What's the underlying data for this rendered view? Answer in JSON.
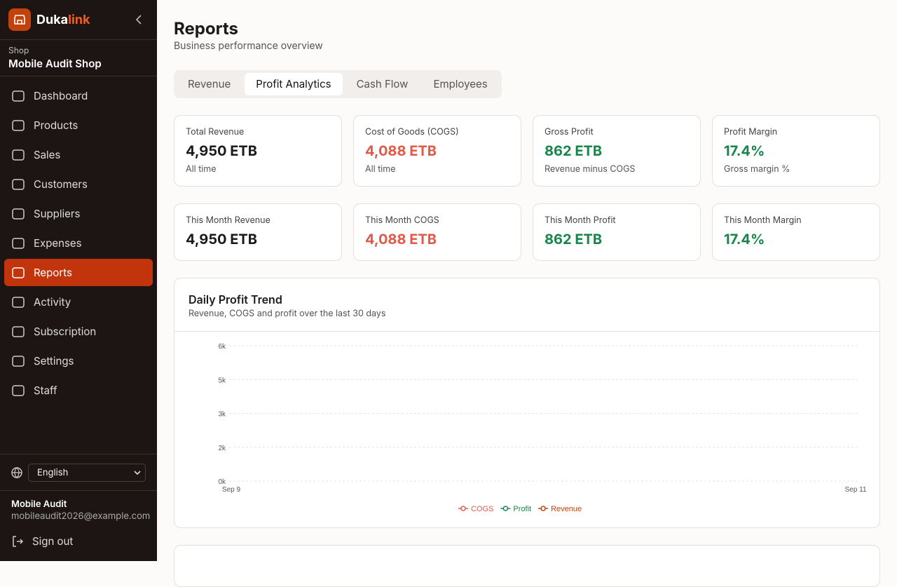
{
  "sidebar": {
    "brand": {
      "first": "Duka",
      "second": "link"
    },
    "shop_label": "Shop",
    "shop_name": "Mobile Audit Shop",
    "nav": [
      "Dashboard",
      "Products",
      "Sales",
      "Customers",
      "Suppliers",
      "Expenses",
      "Reports",
      "Activity",
      "Subscription",
      "Settings",
      "Staff"
    ],
    "active_nav": 6,
    "language": "English",
    "user": {
      "name": "Mobile Audit",
      "email": "mobileaudit2026@example.com"
    },
    "sign_out": "Sign out"
  },
  "header": {
    "title": "Reports",
    "subtitle": "Business performance overview"
  },
  "tabs": [
    "Revenue",
    "Profit Analytics",
    "Cash Flow",
    "Employees"
  ],
  "active_tab": 1,
  "stats": [
    {
      "label": "Total Revenue",
      "value": "4,950 ETB",
      "note": "All time",
      "color": "#1a1a1a"
    },
    {
      "label": "Cost of Goods (COGS)",
      "value": "4,088 ETB",
      "note": "All time",
      "color": "#e05a47"
    },
    {
      "label": "Gross Profit",
      "value": "862 ETB",
      "note": "Revenue minus COGS",
      "color": "#16864a"
    },
    {
      "label": "Profit Margin",
      "value": "17.4%",
      "note": "Gross margin %",
      "color": "#16864a"
    },
    {
      "label": "This Month Revenue",
      "value": "4,950 ETB",
      "color": "#1a1a1a"
    },
    {
      "label": "This Month COGS",
      "value": "4,088 ETB",
      "color": "#e05a47"
    },
    {
      "label": "This Month Profit",
      "value": "862 ETB",
      "color": "#16864a"
    },
    {
      "label": "This Month Margin",
      "value": "17.4%",
      "color": "#16864a"
    }
  ],
  "chart_data": {
    "type": "line",
    "title": "Daily Profit Trend",
    "subtitle": "Revenue, COGS and profit over the last 30 days",
    "x": [
      "Sep 9",
      "Sep 11"
    ],
    "series": [
      {
        "name": "COGS",
        "color": "#e05a47",
        "values": [
          null,
          null
        ]
      },
      {
        "name": "Profit",
        "color": "#16864a",
        "values": [
          null,
          null
        ]
      },
      {
        "name": "Revenue",
        "color": "#c2410c",
        "values": [
          null,
          null
        ]
      }
    ],
    "ylim": [
      0,
      6000
    ],
    "yticks": [
      {
        "value": 0,
        "label": "0k"
      },
      {
        "value": 1500,
        "label": "2k"
      },
      {
        "value": 3000,
        "label": "3k"
      },
      {
        "value": 4500,
        "label": "5k"
      },
      {
        "value": 6000,
        "label": "6k"
      }
    ],
    "grid": true
  }
}
